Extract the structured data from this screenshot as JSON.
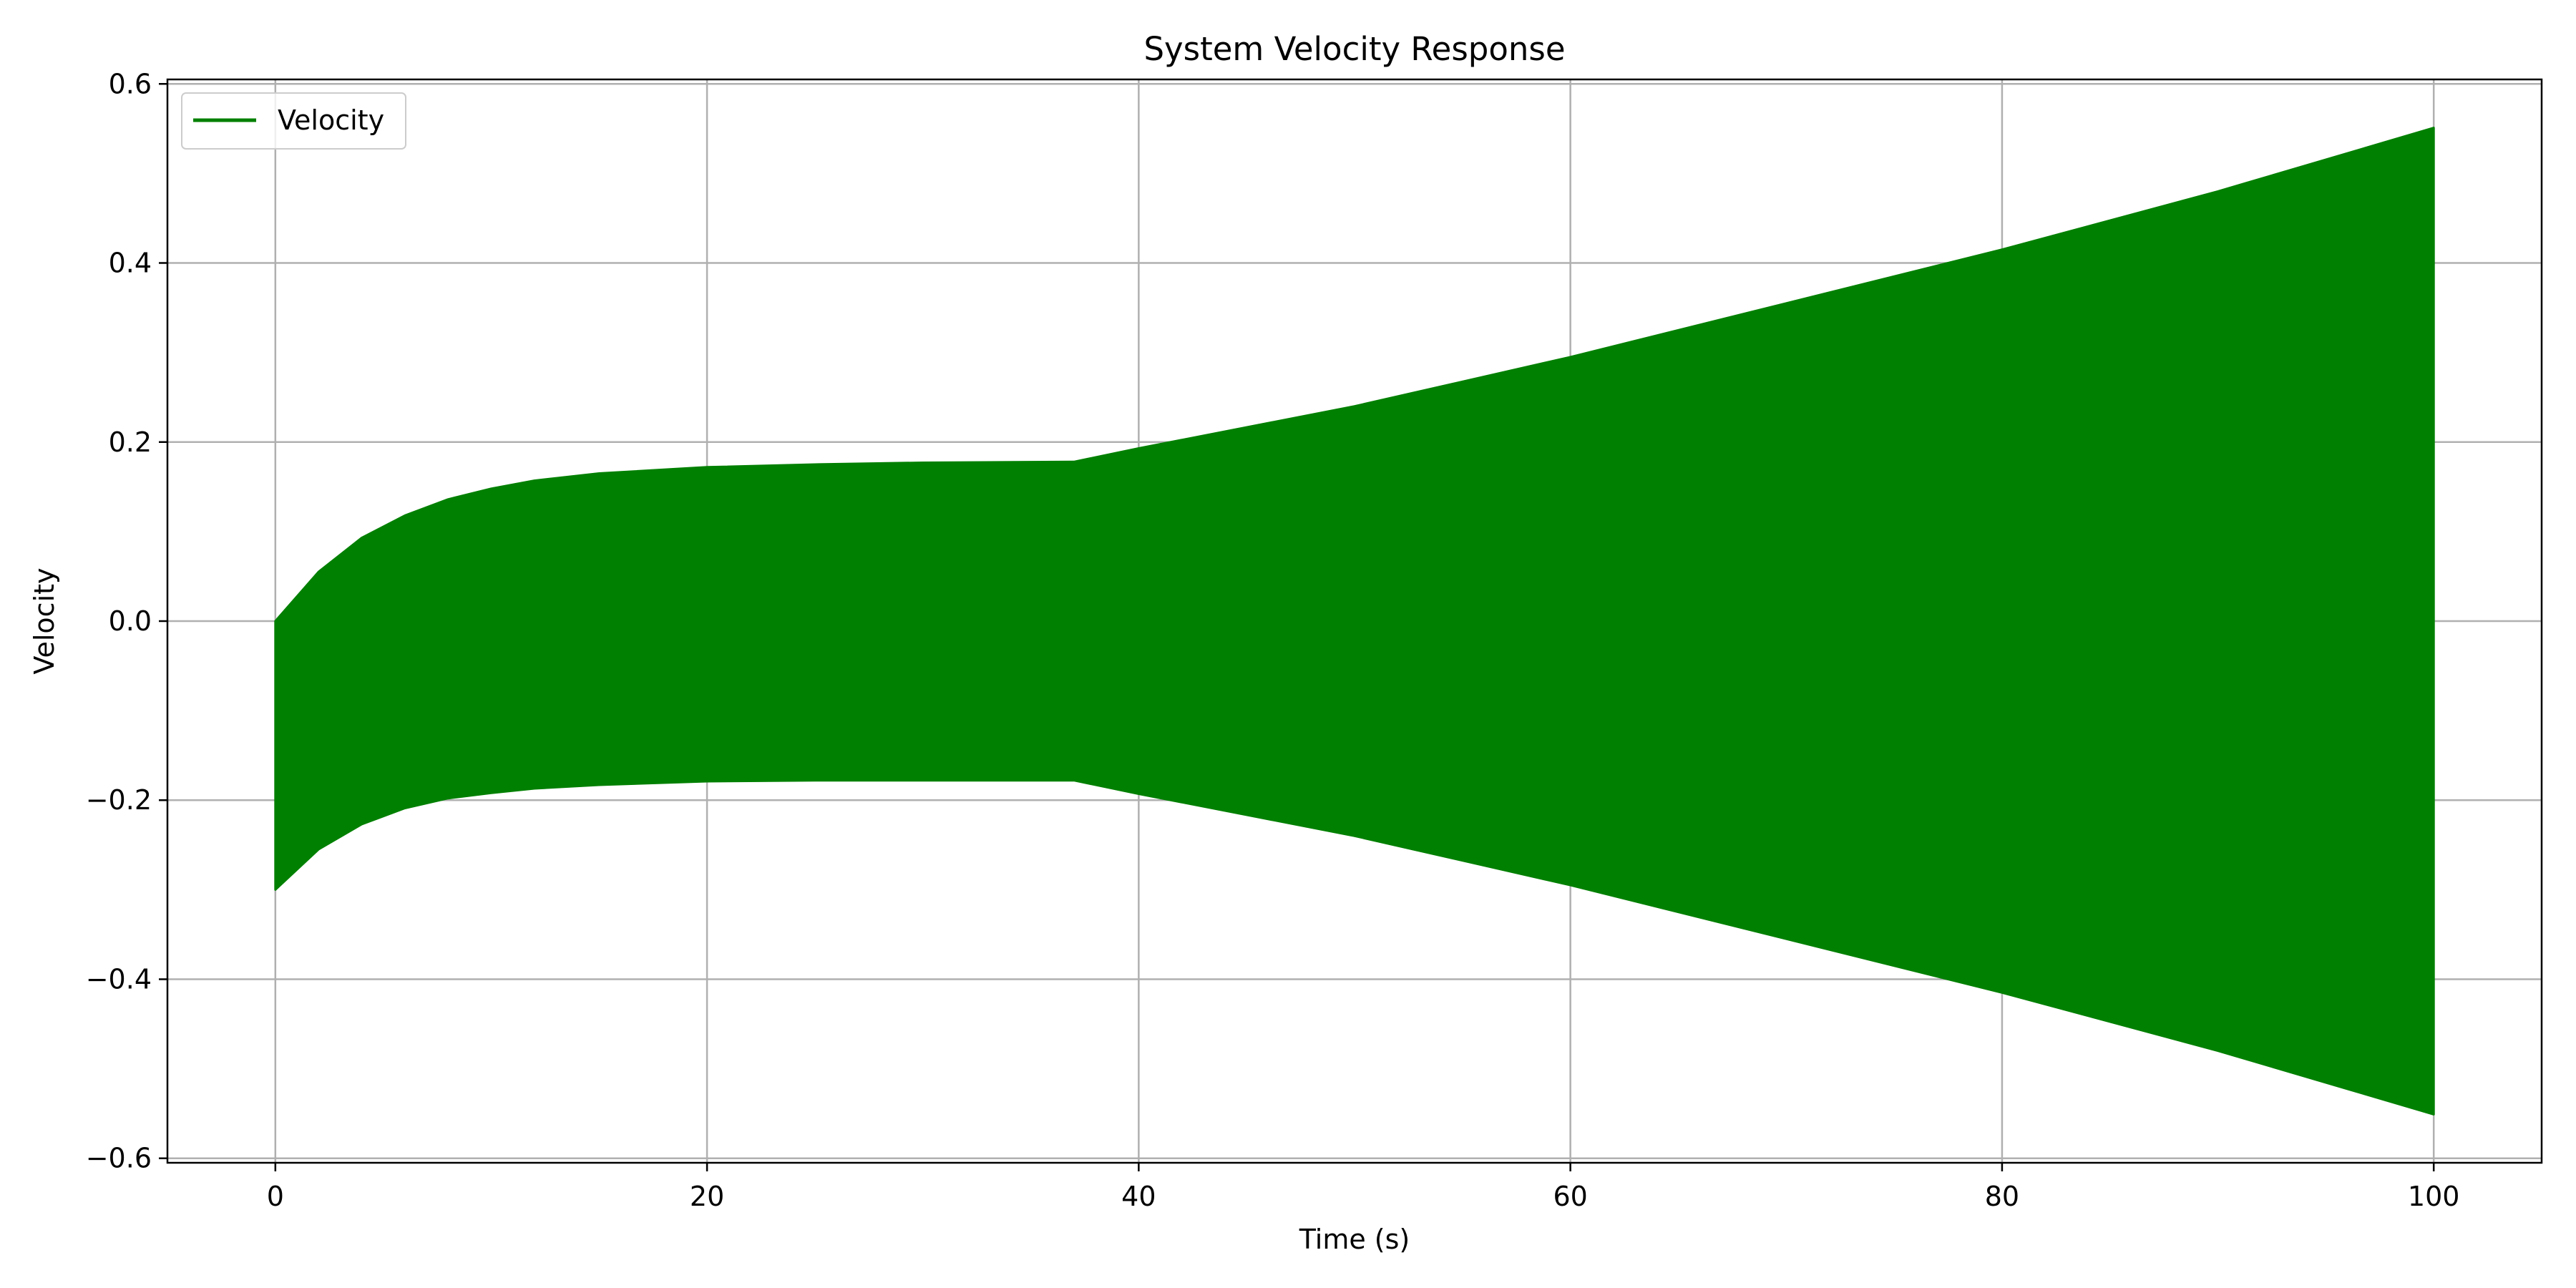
{
  "chart_data": {
    "type": "line",
    "title": "System Velocity Response",
    "xlabel": "Time (s)",
    "ylabel": "Velocity",
    "xlim": [
      -5,
      105
    ],
    "ylim": [
      -0.605,
      0.605
    ],
    "xticks": [
      0,
      20,
      40,
      60,
      80,
      100
    ],
    "xtick_labels": [
      "0",
      "20",
      "40",
      "60",
      "80",
      "100"
    ],
    "yticks": [
      -0.6,
      -0.4,
      -0.2,
      0.0,
      0.2,
      0.4,
      0.6
    ],
    "ytick_labels": [
      "−0.6",
      "−0.4",
      "−0.2",
      "0.0",
      "0.2",
      "0.4",
      "0.6"
    ],
    "grid": true,
    "legend": {
      "position": "upper-left",
      "entries": [
        "Velocity"
      ]
    },
    "series": [
      {
        "name": "Velocity",
        "color": "#008000",
        "style": "rapid oscillation (dense band)",
        "envelope": {
          "t": [
            0,
            2,
            4,
            6,
            8,
            10,
            12,
            15,
            20,
            25,
            30,
            37,
            40,
            50,
            60,
            70,
            80,
            90,
            100
          ],
          "upper": [
            0.0,
            0.055,
            0.093,
            0.118,
            0.136,
            0.148,
            0.157,
            0.165,
            0.172,
            0.175,
            0.177,
            0.178,
            0.193,
            0.24,
            0.295,
            0.355,
            0.415,
            0.48,
            0.551
          ],
          "lower": [
            -0.3,
            -0.255,
            -0.227,
            -0.209,
            -0.198,
            -0.192,
            -0.187,
            -0.183,
            -0.179,
            -0.178,
            -0.178,
            -0.178,
            -0.193,
            -0.24,
            -0.295,
            -0.355,
            -0.415,
            -0.48,
            -0.551
          ]
        }
      }
    ]
  }
}
